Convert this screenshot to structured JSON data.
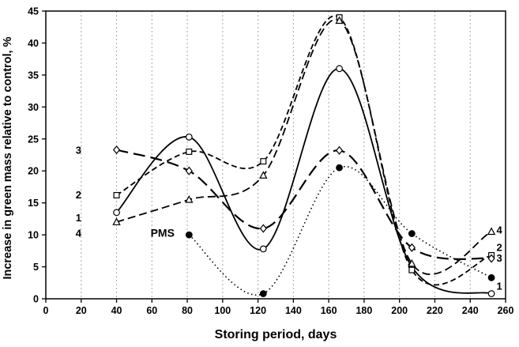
{
  "chart_data": {
    "type": "line",
    "title": "",
    "xlabel": "Storing period, days",
    "ylabel": "Increase in green mass relative to control, %",
    "xlim": [
      0,
      260
    ],
    "ylim": [
      0,
      45
    ],
    "xticks": [
      0,
      20,
      40,
      60,
      80,
      100,
      120,
      140,
      160,
      180,
      200,
      220,
      240,
      260
    ],
    "yticks": [
      0,
      5,
      10,
      15,
      20,
      25,
      30,
      35,
      40,
      45
    ],
    "grid": {
      "vertical": true,
      "horizontal": false,
      "color": "#a8a8a8",
      "dash": "2,3"
    },
    "frame_color": "#000000",
    "background": "#ffffff",
    "line_color": "#000000",
    "series": [
      {
        "name": "1",
        "marker": "circle-open",
        "line": "solid",
        "dash": "",
        "width": 1.8,
        "x": [
          40,
          81,
          123,
          166,
          207,
          252
        ],
        "y": [
          13.5,
          25.3,
          7.8,
          36,
          5,
          0.8
        ]
      },
      {
        "name": "2",
        "marker": "square-open",
        "line": "dash",
        "dash": "7,4",
        "width": 1.8,
        "x": [
          40,
          81,
          123,
          166,
          207,
          252
        ],
        "y": [
          16.2,
          23,
          21.5,
          44,
          4.5,
          6.8
        ]
      },
      {
        "name": "3",
        "marker": "diamond-open",
        "line": "long-dash",
        "dash": "15,7",
        "width": 2.2,
        "x": [
          40,
          81,
          123,
          166,
          207,
          252
        ],
        "y": [
          23.3,
          20,
          11,
          23.2,
          8,
          6.3
        ]
      },
      {
        "name": "4",
        "marker": "triangle-open",
        "line": "dash",
        "dash": "10,5",
        "width": 1.8,
        "x": [
          40,
          81,
          123,
          166,
          207,
          252
        ],
        "y": [
          12,
          15.5,
          19.3,
          43.5,
          5.5,
          10.5
        ]
      },
      {
        "name": "PMS",
        "marker": "circle-filled",
        "line": "dotted",
        "dash": "1.5,3.5",
        "width": 1.6,
        "x": [
          81,
          123,
          166,
          207,
          252
        ],
        "y": [
          10,
          0.8,
          20.5,
          10.2,
          3.3
        ]
      }
    ],
    "annotations": [
      {
        "text": "3",
        "x": 18.5,
        "y": 23.2,
        "size": 13
      },
      {
        "text": "2",
        "x": 18.5,
        "y": 16.2,
        "size": 13
      },
      {
        "text": "1",
        "x": 18.5,
        "y": 12.6,
        "size": 13
      },
      {
        "text": "4",
        "x": 18.5,
        "y": 10.2,
        "size": 13
      },
      {
        "text": "PMS",
        "x": 66,
        "y": 10.2,
        "size": 14
      },
      {
        "text": "4",
        "x": 256.5,
        "y": 10.7,
        "size": 13
      },
      {
        "text": "2",
        "x": 256.5,
        "y": 8.0,
        "size": 13
      },
      {
        "text": "3",
        "x": 256.5,
        "y": 6.3,
        "size": 13
      },
      {
        "text": "1",
        "x": 256.5,
        "y": 1.9,
        "size": 13
      }
    ]
  }
}
